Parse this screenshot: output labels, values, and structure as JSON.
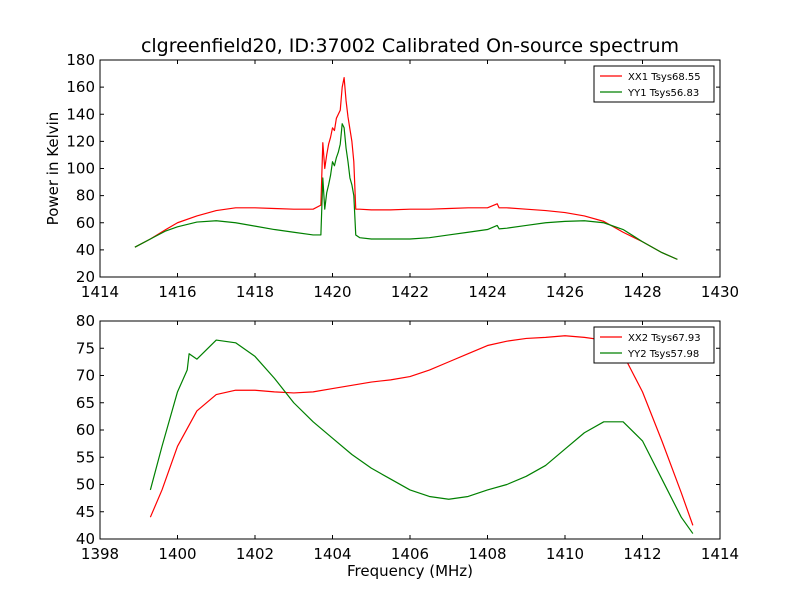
{
  "chart_data": [
    {
      "type": "line",
      "title": "clgreenfield20, ID:37002 Calibrated On-source spectrum",
      "xlabel": "",
      "ylabel": "Power in Kelvin",
      "xlim": [
        1414,
        1430
      ],
      "ylim": [
        20,
        180
      ],
      "xticks": [
        1414,
        1416,
        1418,
        1420,
        1422,
        1424,
        1426,
        1428,
        1430
      ],
      "yticks": [
        20,
        40,
        60,
        80,
        100,
        120,
        140,
        160,
        180
      ],
      "grid": false,
      "legend": "top-right",
      "series": [
        {
          "name": "XX1 Tsys68.55",
          "color": "#ff0000",
          "x": [
            1414.9,
            1415.3,
            1415.7,
            1416.0,
            1416.5,
            1417.0,
            1417.5,
            1418.0,
            1418.5,
            1419.0,
            1419.5,
            1419.7,
            1419.75,
            1419.8,
            1419.85,
            1419.9,
            1419.95,
            1420.0,
            1420.05,
            1420.1,
            1420.15,
            1420.2,
            1420.25,
            1420.3,
            1420.35,
            1420.4,
            1420.45,
            1420.5,
            1420.55,
            1420.6,
            1420.7,
            1421.0,
            1421.5,
            1422.0,
            1422.5,
            1423.0,
            1423.5,
            1424.0,
            1424.25,
            1424.3,
            1424.5,
            1425.0,
            1425.5,
            1426.0,
            1426.5,
            1427.0,
            1427.5,
            1428.0,
            1428.5,
            1428.9
          ],
          "y": [
            42,
            48,
            55,
            60,
            65,
            69,
            71,
            71,
            70.5,
            70,
            70,
            73,
            119,
            100,
            110,
            118,
            123,
            130,
            128,
            137,
            140,
            143,
            160,
            167,
            150,
            138,
            129,
            120,
            105,
            70,
            70,
            69.5,
            69.5,
            70,
            70,
            70.5,
            71,
            71,
            74,
            71,
            71,
            70,
            69,
            67.5,
            65,
            61,
            53,
            46,
            38,
            33
          ]
        },
        {
          "name": "YY1 Tsys56.83",
          "color": "#008000",
          "x": [
            1414.9,
            1415.3,
            1415.7,
            1416.0,
            1416.5,
            1417.0,
            1417.5,
            1418.0,
            1418.5,
            1419.0,
            1419.5,
            1419.7,
            1419.75,
            1419.8,
            1419.85,
            1419.9,
            1419.95,
            1420.0,
            1420.05,
            1420.1,
            1420.15,
            1420.2,
            1420.25,
            1420.3,
            1420.35,
            1420.4,
            1420.45,
            1420.5,
            1420.55,
            1420.6,
            1420.7,
            1421.0,
            1421.5,
            1422.0,
            1422.5,
            1423.0,
            1423.5,
            1424.0,
            1424.25,
            1424.3,
            1424.5,
            1425.0,
            1425.5,
            1426.0,
            1426.5,
            1427.0,
            1427.5,
            1428.0,
            1428.5,
            1428.9
          ],
          "y": [
            42,
            48,
            54,
            57,
            60.5,
            61.5,
            60,
            57.5,
            55,
            53,
            51,
            51,
            93,
            70,
            82,
            88,
            95,
            105,
            102,
            108,
            112,
            118,
            133,
            130,
            115,
            105,
            93,
            88,
            80,
            51,
            49,
            48,
            48,
            48,
            49,
            51,
            53,
            55,
            58,
            55.5,
            56,
            58,
            60,
            61,
            61.5,
            60,
            55,
            46,
            38,
            33
          ]
        }
      ]
    },
    {
      "type": "line",
      "title": "",
      "xlabel": "Frequency (MHz)",
      "ylabel": "",
      "xlim": [
        1398,
        1414
      ],
      "ylim": [
        40,
        80
      ],
      "xticks": [
        1398,
        1400,
        1402,
        1404,
        1406,
        1408,
        1410,
        1412,
        1414
      ],
      "yticks": [
        40,
        45,
        50,
        55,
        60,
        65,
        70,
        75,
        80
      ],
      "grid": false,
      "legend": "top-right",
      "series": [
        {
          "name": "XX2 Tsys67.93",
          "color": "#ff0000",
          "x": [
            1399.3,
            1399.6,
            1400.0,
            1400.5,
            1401.0,
            1401.5,
            1402.0,
            1402.5,
            1403.0,
            1403.5,
            1404.0,
            1404.5,
            1405.0,
            1405.5,
            1406.0,
            1406.5,
            1407.0,
            1407.5,
            1408.0,
            1408.5,
            1409.0,
            1409.5,
            1410.0,
            1410.5,
            1411.0,
            1411.3,
            1411.6,
            1412.0,
            1412.5,
            1413.0,
            1413.3
          ],
          "y": [
            44,
            49,
            57,
            63.5,
            66.5,
            67.3,
            67.3,
            67.0,
            66.8,
            67.0,
            67.6,
            68.2,
            68.8,
            69.2,
            69.8,
            71.0,
            72.5,
            74.0,
            75.5,
            76.3,
            76.8,
            77.0,
            77.3,
            77.0,
            76.5,
            75.0,
            72.5,
            67.0,
            58.0,
            48.5,
            42.5
          ]
        },
        {
          "name": "YY2 Tsys57.98",
          "color": "#008000",
          "x": [
            1399.3,
            1399.6,
            1400.0,
            1400.25,
            1400.3,
            1400.5,
            1401.0,
            1401.5,
            1402.0,
            1402.5,
            1403.0,
            1403.5,
            1404.0,
            1404.5,
            1405.0,
            1405.5,
            1406.0,
            1406.5,
            1407.0,
            1407.5,
            1408.0,
            1408.5,
            1409.0,
            1409.5,
            1410.0,
            1410.5,
            1411.0,
            1411.5,
            1412.0,
            1412.5,
            1413.0,
            1413.3
          ],
          "y": [
            49,
            57,
            67,
            71,
            74,
            73,
            76.5,
            76.0,
            73.5,
            69.5,
            65.0,
            61.5,
            58.5,
            55.5,
            53.0,
            51.0,
            49.0,
            47.8,
            47.3,
            47.8,
            49.0,
            50.0,
            51.5,
            53.5,
            56.5,
            59.5,
            61.5,
            61.5,
            58.0,
            51.0,
            44.0,
            41.0
          ]
        }
      ]
    }
  ]
}
